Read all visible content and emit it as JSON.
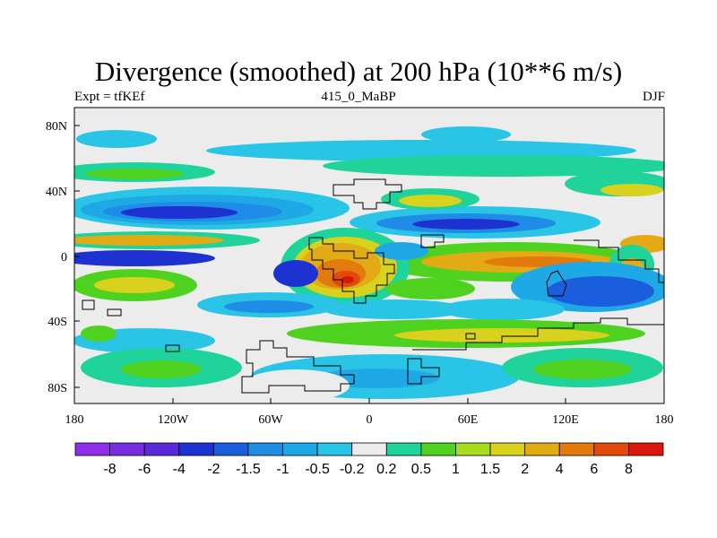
{
  "title": "Divergence (smoothed) at 200 hPa (10**6 m/s)",
  "left_label": "Expt = tfKEf",
  "center_label": "415_0_MaBP",
  "right_label": "DJF",
  "map": {
    "lon_ticks": [
      "180",
      "120W",
      "60W",
      "0",
      "60E",
      "120E",
      "180"
    ],
    "lat_ticks": [
      "80N",
      "40N",
      "0",
      "40S",
      "80S"
    ]
  },
  "colorbar": {
    "colors": [
      "#8f2ee8",
      "#7a2de0",
      "#5a2ad8",
      "#1e32d2",
      "#1a5ede",
      "#1f8ce6",
      "#1fa8e6",
      "#2ac4e6",
      "#ececec",
      "#1fd39a",
      "#4fd21f",
      "#a8dc1f",
      "#d8d21f",
      "#e2aa14",
      "#e27a0e",
      "#e24a0c",
      "#d8180c"
    ],
    "labels": [
      "-8",
      "-6",
      "-4",
      "-2",
      "-1.5",
      "-1",
      "-0.5",
      "-0.2",
      "0.2",
      "0.5",
      "1",
      "1.5",
      "2",
      "4",
      "6",
      "8"
    ]
  }
}
